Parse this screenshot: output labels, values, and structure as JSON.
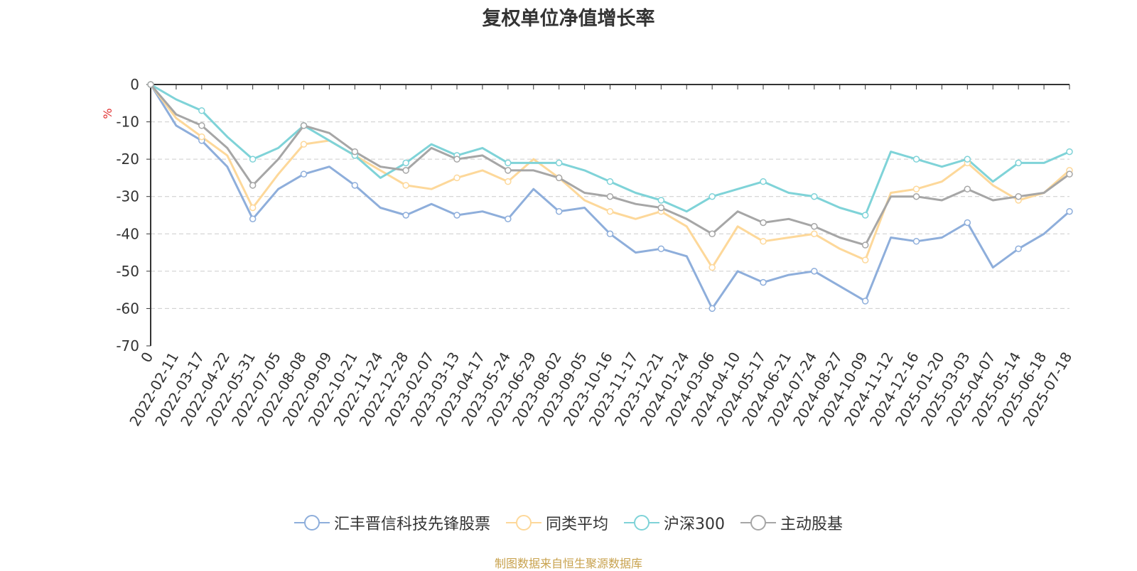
{
  "chart_data": {
    "type": "line",
    "title": "复权单位净值增长率",
    "ylabel": "%",
    "ylim": [
      -70,
      0
    ],
    "yticks": [
      0,
      -10,
      -20,
      -30,
      -40,
      -50,
      -60,
      -70
    ],
    "grid": true,
    "legend_position": "bottom",
    "x_ticks": [
      "0",
      "2022-02-11",
      "2022-03-17",
      "2022-04-22",
      "2022-05-31",
      "2022-07-05",
      "2022-08-08",
      "2022-09-09",
      "2022-10-21",
      "2022-11-24",
      "2022-12-28",
      "2023-02-07",
      "2023-03-13",
      "2023-04-17",
      "2023-05-24",
      "2023-06-29",
      "2023-08-02",
      "2023-09-05",
      "2023-10-16",
      "2023-11-17",
      "2023-12-21",
      "2024-01-24",
      "2024-03-06",
      "2024-04-10",
      "2024-05-17",
      "2024-06-21",
      "2024-07-24",
      "2024-08-27",
      "2024-10-09",
      "2024-11-12",
      "2024-12-16",
      "2025-01-20",
      "2025-03-03",
      "2025-04-07",
      "2025-05-14",
      "2025-06-18",
      "2025-07-18"
    ],
    "series": [
      {
        "name": "汇丰晋信科技先锋股票",
        "color": "#8eaedb",
        "values": [
          0,
          -11,
          -15,
          -22,
          -36,
          -28,
          -24,
          -22,
          -27,
          -33,
          -35,
          -32,
          -35,
          -34,
          -36,
          -28,
          -34,
          -33,
          -40,
          -45,
          -44,
          -46,
          -60,
          -50,
          -53,
          -51,
          -50,
          -54,
          -58,
          -41,
          -42,
          -41,
          -37,
          -49,
          -44,
          -40,
          -34
        ]
      },
      {
        "name": "同类平均",
        "color": "#fdd89a",
        "values": [
          0,
          -9,
          -14,
          -19,
          -33,
          -24,
          -16,
          -15,
          -19,
          -23,
          -27,
          -28,
          -25,
          -23,
          -26,
          -20,
          -25,
          -31,
          -34,
          -36,
          -34,
          -38,
          -49,
          -38,
          -42,
          -41,
          -40,
          -44,
          -47,
          -29,
          -28,
          -26,
          -21,
          -27,
          -31,
          -29,
          -23
        ]
      },
      {
        "name": "沪深300",
        "color": "#7fd3d8",
        "values": [
          0,
          -4,
          -7,
          -14,
          -20,
          -17,
          -11,
          -15,
          -19,
          -25,
          -21,
          -16,
          -19,
          -17,
          -21,
          -21,
          -21,
          -23,
          -26,
          -29,
          -31,
          -34,
          -30,
          -28,
          -26,
          -29,
          -30,
          -33,
          -35,
          -18,
          -20,
          -22,
          -20,
          -26,
          -21,
          -21,
          -18
        ]
      },
      {
        "name": "主动股基",
        "color": "#a6a6a6",
        "values": [
          0,
          -8,
          -11,
          -17,
          -27,
          -20,
          -11,
          -13,
          -18,
          -22,
          -23,
          -17,
          -20,
          -19,
          -23,
          -23,
          -25,
          -29,
          -30,
          -32,
          -33,
          -36,
          -40,
          -34,
          -37,
          -36,
          -38,
          -41,
          -43,
          -30,
          -30,
          -31,
          -28,
          -31,
          -30,
          -29,
          -24
        ]
      }
    ]
  },
  "source_note": {
    "text": "制图数据来自恒生聚源数据库",
    "color": "#c8a24e"
  }
}
